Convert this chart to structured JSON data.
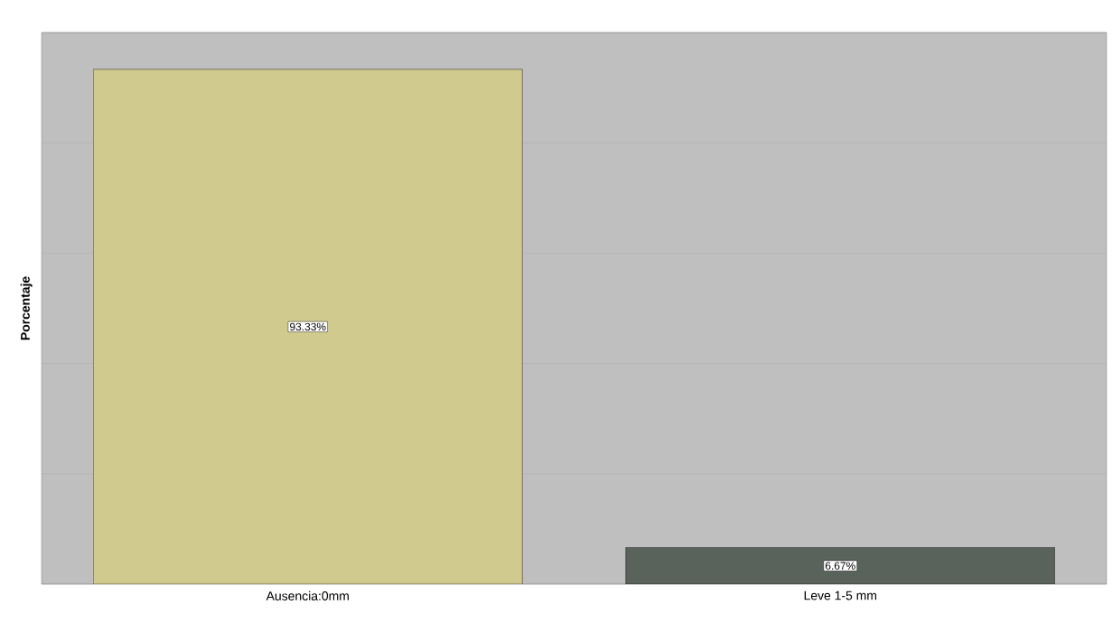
{
  "chart_data": {
    "type": "bar",
    "ylabel": "Porcentaje",
    "categories": [
      "Ausencia:0mm",
      "Leve 1-5 mm"
    ],
    "values": [
      93.33,
      6.67
    ],
    "value_labels": [
      "93.33%",
      "6.67%"
    ],
    "colors": [
      "#d0ca8e",
      "#5a625c"
    ],
    "ylim": [
      0,
      100
    ],
    "yticks": [
      {
        "value": 0,
        "label": null
      },
      {
        "value": 20,
        "label": null
      },
      {
        "value": 40,
        "label": null
      },
      {
        "value": 60,
        "label": null
      },
      {
        "value": 80,
        "label": null
      },
      {
        "value": 100,
        "label": null
      }
    ],
    "tick_labels": "x",
    "grid": "y"
  }
}
